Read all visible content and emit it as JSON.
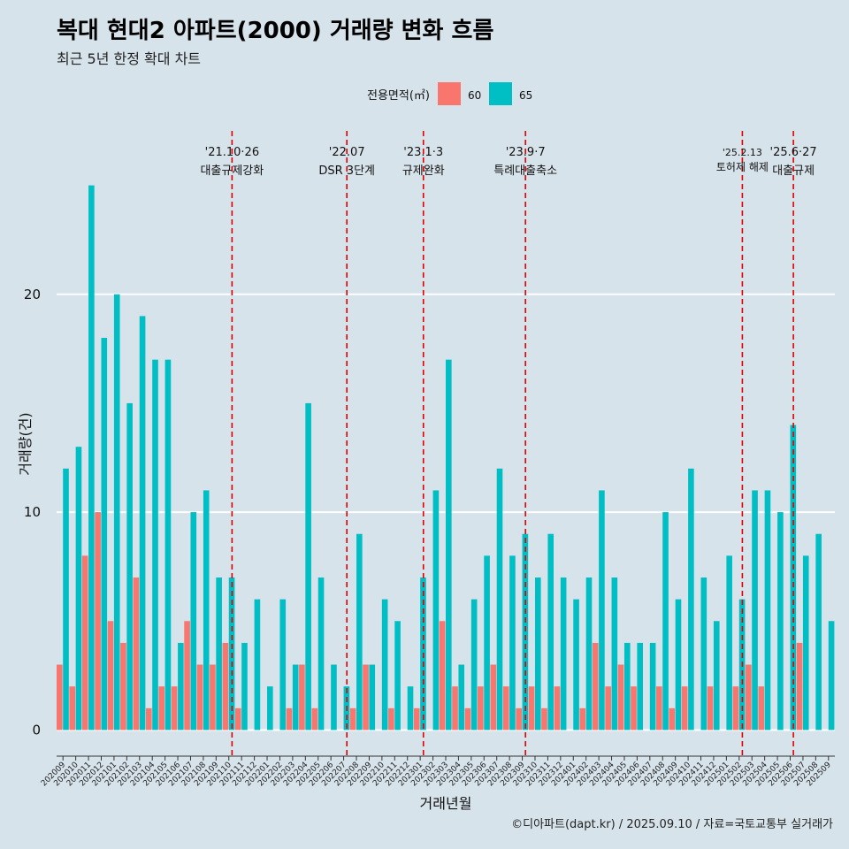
{
  "chart_data": {
    "type": "bar",
    "title": "복대 현대2 아파트(2000) 거래량 변화 흐름",
    "subtitle": "최근 5년 한정 확대 차트",
    "xlabel": "거래년월",
    "ylabel": "거래량(건)",
    "caption": "©디아파트(dapt.kr) / 2025.09.10 / 자료=국토교통부 실거래가",
    "legend": {
      "title": "전용면적(㎡)",
      "position": "top"
    },
    "ylim": [
      -1.2,
      27.5
    ],
    "yticks": [
      0,
      10,
      20
    ],
    "grid": true,
    "categories": [
      "202009",
      "202010",
      "202011",
      "202012",
      "202101",
      "202102",
      "202103",
      "202104",
      "202105",
      "202106",
      "202107",
      "202108",
      "202109",
      "202110",
      "202111",
      "202112",
      "202201",
      "202202",
      "202203",
      "202204",
      "202205",
      "202206",
      "202207",
      "202208",
      "202209",
      "202210",
      "202211",
      "202212",
      "202301",
      "202302",
      "202303",
      "202304",
      "202305",
      "202306",
      "202307",
      "202308",
      "202309",
      "202310",
      "202311",
      "202312",
      "202401",
      "202402",
      "202403",
      "202404",
      "202405",
      "202406",
      "202407",
      "202408",
      "202409",
      "202410",
      "202411",
      "202412",
      "202501",
      "202502",
      "202503",
      "202504",
      "202505",
      "202506",
      "202507",
      "202508",
      "202509"
    ],
    "series": [
      {
        "name": "60",
        "color": "#f8766d",
        "values": [
          3,
          2,
          8,
          10,
          5,
          4,
          7,
          1,
          2,
          2,
          5,
          3,
          3,
          4,
          1,
          0,
          0,
          0,
          1,
          3,
          1,
          0,
          0,
          1,
          3,
          0,
          1,
          0,
          1,
          0,
          5,
          2,
          1,
          2,
          3,
          2,
          1,
          2,
          1,
          2,
          0,
          1,
          4,
          2,
          3,
          2,
          0,
          2,
          1,
          2,
          0,
          2,
          0,
          2,
          3,
          2,
          0,
          0,
          4,
          0,
          0
        ]
      },
      {
        "name": "65",
        "color": "#00bfc4",
        "values": [
          12,
          13,
          25,
          18,
          20,
          15,
          19,
          17,
          17,
          4,
          10,
          11,
          7,
          7,
          4,
          6,
          2,
          6,
          3,
          15,
          7,
          3,
          2,
          9,
          3,
          6,
          5,
          2,
          7,
          11,
          17,
          3,
          6,
          8,
          12,
          8,
          9,
          7,
          9,
          7,
          6,
          7,
          11,
          7,
          4,
          4,
          4,
          10,
          6,
          12,
          7,
          5,
          8,
          6,
          11,
          11,
          10,
          14,
          8,
          9,
          5
        ]
      }
    ],
    "events": [
      {
        "index": 13,
        "date": "'21.10·26",
        "label": "대출규제강화"
      },
      {
        "index": 22,
        "date": "'22.07",
        "label": "DSR 3단계"
      },
      {
        "index": 28,
        "date": "'23.1·3",
        "label": "규제완화"
      },
      {
        "index": 36,
        "date": "'23.9·7",
        "label": "특례대출축소"
      },
      {
        "index": 53,
        "date": "'25.2.13",
        "label": "토허제 해제"
      },
      {
        "index": 57,
        "date": "'25.6·27",
        "label": "대출규제"
      }
    ]
  }
}
